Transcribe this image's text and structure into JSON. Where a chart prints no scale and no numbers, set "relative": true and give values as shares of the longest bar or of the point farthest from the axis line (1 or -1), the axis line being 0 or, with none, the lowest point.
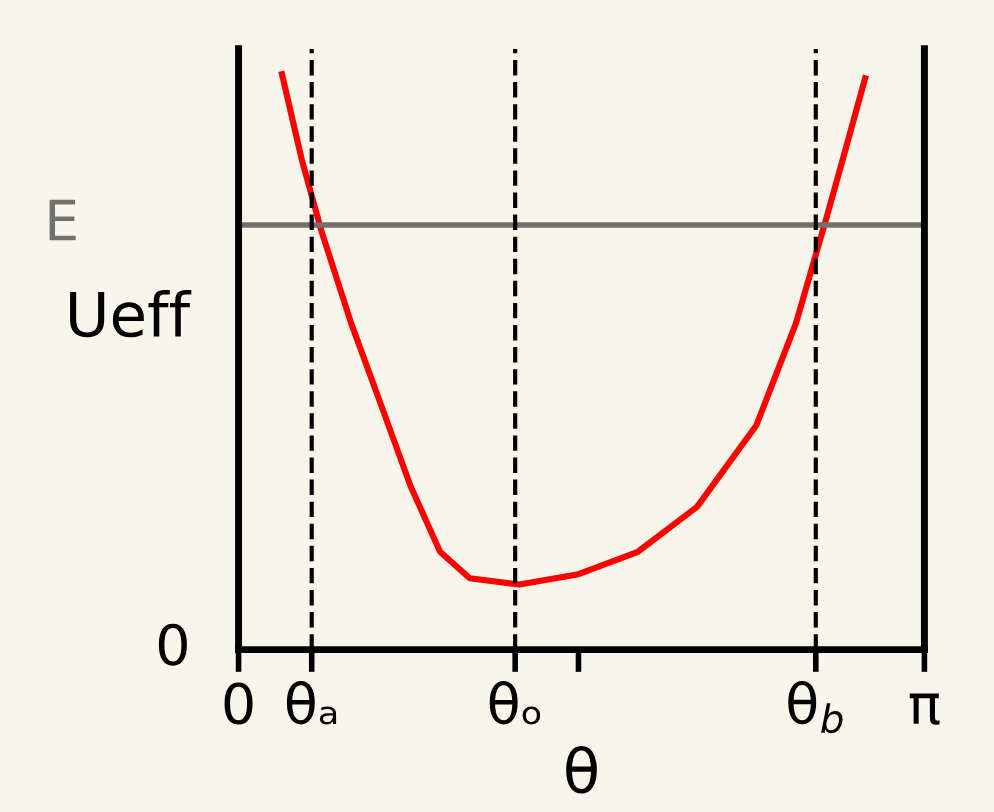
{
  "chart_data": {
    "type": "line",
    "relative": true,
    "xlabel": "θ",
    "ylabel": "Ueff",
    "x": [
      0.199,
      0.29,
      0.38,
      0.516,
      0.652,
      0.788,
      0.923,
      1.059,
      1.286,
      1.557,
      1.829,
      2.1,
      2.372,
      2.553,
      2.689,
      2.78,
      2.87
    ],
    "series": [
      {
        "color": "#ff0000",
        "values": [
          1.0,
          0.851,
          0.727,
          0.567,
          0.426,
          0.284,
          0.17,
          0.124,
          0.113,
          0.131,
          0.17,
          0.248,
          0.39,
          0.567,
          0.745,
          0.869,
          0.993
        ]
      }
    ],
    "xlim": [
      0,
      3.1416
    ],
    "xticks": [
      {
        "value": 0,
        "label": "0"
      },
      {
        "value": 0.335,
        "label": "θₐ"
      },
      {
        "value": 1.267,
        "label": "θₒ"
      },
      {
        "value": 1.557,
        "label": null
      },
      {
        "value": 2.644,
        "label": "θ$_{b}$"
      },
      {
        "value": 3.1416,
        "label": "π"
      }
    ],
    "ref_lines": [
      {
        "axis": "y",
        "value": 0.738,
        "label": "E",
        "color": "#707070"
      },
      {
        "axis": "x",
        "value": 0.335,
        "color": "#000000",
        "line_style": "dashed"
      },
      {
        "axis": "x",
        "value": 1.267,
        "color": "#000000",
        "line_style": "dashed"
      },
      {
        "axis": "x",
        "value": 2.644,
        "color": "#000000",
        "line_style": "dashed"
      }
    ],
    "annotations": [
      "0"
    ],
    "grid": false,
    "legend": false,
    "marker": "none",
    "line_style": "solid"
  }
}
